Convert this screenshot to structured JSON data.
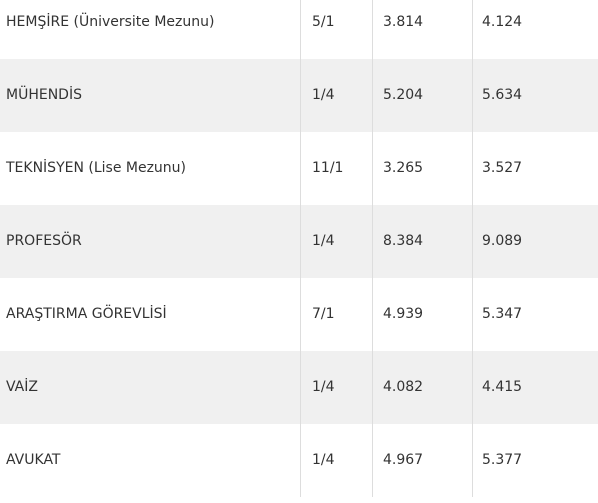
{
  "table": {
    "rows": [
      [
        "HEMŞİRE (Üniversite Mezunu)",
        "5/1",
        "3.814",
        "4.124"
      ],
      [
        "MÜHENDİS",
        "1/4",
        "5.204",
        "5.634"
      ],
      [
        "TEKNİSYEN (Lise Mezunu)",
        "11/1",
        "3.265",
        "3.527"
      ],
      [
        "PROFESÖR",
        "1/4",
        "8.384",
        "9.089"
      ],
      [
        "ARAŞTIRMA GÖREVLİSİ",
        "7/1",
        "4.939",
        "5.347"
      ],
      [
        "VAİZ",
        "1/4",
        "4.082",
        "4.415"
      ],
      [
        "AVUKAT",
        "1/4",
        "4.967",
        "5.377"
      ]
    ]
  }
}
